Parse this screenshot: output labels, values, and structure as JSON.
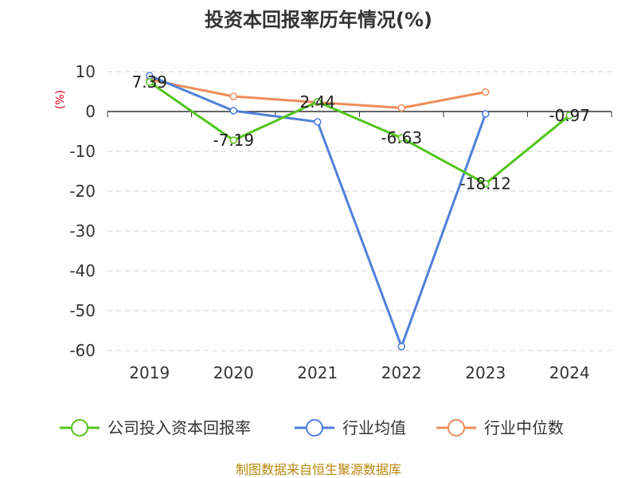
{
  "chart_data": {
    "type": "line",
    "title": "投资本回报率历年情况(%)",
    "y_unit": "(%)",
    "categories": [
      "2019",
      "2020",
      "2021",
      "2022",
      "2023",
      "2024"
    ],
    "yticks": [
      10,
      0,
      -10,
      -20,
      -30,
      -40,
      -50,
      -60
    ],
    "ylim": [
      -60,
      10
    ],
    "grid": true,
    "legend_position": "bottom",
    "series": [
      {
        "name": "公司投入资本回报率",
        "color": "#52c41a",
        "values": [
          7.39,
          -7.19,
          2.44,
          -6.63,
          -18.12,
          -0.97
        ],
        "labels": [
          "7.39",
          "-7.19",
          "2.44",
          "-6.63",
          "-18.12",
          "-0.97"
        ]
      },
      {
        "name": "行业均值",
        "color": "#4f7fd9",
        "values": [
          9.0,
          0.2,
          -2.6,
          -59.0,
          -0.6,
          null
        ]
      },
      {
        "name": "行业中位数",
        "color": "#f08c5a",
        "values": [
          8.0,
          3.8,
          2.3,
          0.9,
          4.9,
          null
        ]
      }
    ]
  },
  "source_text": "制图数据来自恒生聚源数据库"
}
